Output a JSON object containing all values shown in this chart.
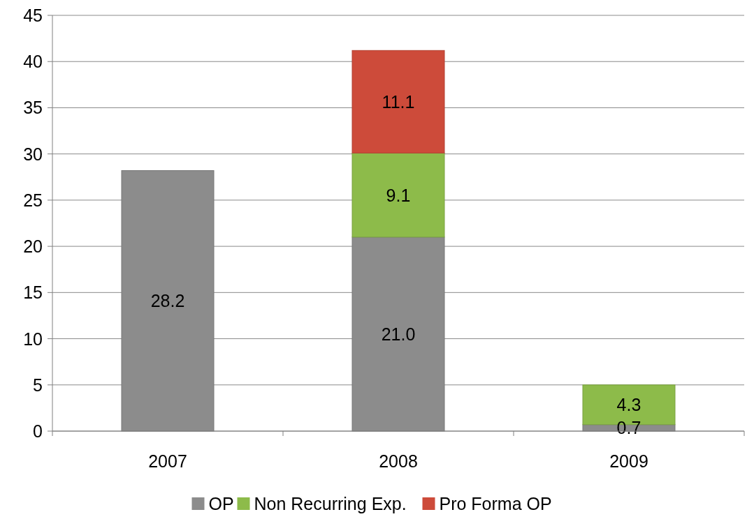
{
  "chart_data": {
    "type": "bar",
    "stacked": true,
    "categories": [
      "2007",
      "2008",
      "2009"
    ],
    "series": [
      {
        "name": "OP",
        "color": "#8c8c8c",
        "values": [
          28.2,
          21.0,
          0.7
        ],
        "value_labels": [
          "28.2",
          "21.0",
          "0.7"
        ]
      },
      {
        "name": "Non Recurring Exp.",
        "color": "#8dbb4a",
        "values": [
          null,
          9.1,
          4.3
        ],
        "value_labels": [
          null,
          "9.1",
          "4.3"
        ]
      },
      {
        "name": "Pro Forma OP",
        "color": "#cd4b3a",
        "values": [
          null,
          11.1,
          null
        ],
        "value_labels": [
          null,
          "11.1",
          null
        ]
      }
    ],
    "ylim": [
      0,
      45
    ],
    "yticks": [
      0,
      5,
      10,
      15,
      20,
      25,
      30,
      35,
      40,
      45
    ],
    "grid": "y",
    "legend": "bottom"
  }
}
